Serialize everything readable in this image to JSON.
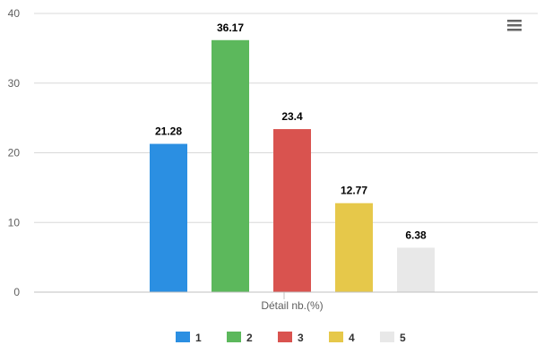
{
  "chart_data": {
    "type": "bar",
    "categories": [
      "Détail nb.(%)"
    ],
    "series": [
      {
        "name": "1",
        "values": [
          21.28
        ],
        "color": "#2b8fe2"
      },
      {
        "name": "2",
        "values": [
          36.17
        ],
        "color": "#5cb85c"
      },
      {
        "name": "3",
        "values": [
          23.4
        ],
        "color": "#d9534f"
      },
      {
        "name": "4",
        "values": [
          12.77
        ],
        "color": "#e6c84a"
      },
      {
        "name": "5",
        "values": [
          6.38
        ],
        "color": "#e8e8e8"
      }
    ],
    "data_labels": [
      "21.28",
      "36.17",
      "23.4",
      "12.77",
      "6.38"
    ],
    "y_ticks": [
      "0",
      "10",
      "20",
      "30",
      "40"
    ],
    "ylim": [
      0,
      40
    ],
    "grid": true,
    "legend": "bottom",
    "title": "",
    "xlabel": "",
    "ylabel": ""
  },
  "menu_icon": "hamburger-menu-icon"
}
